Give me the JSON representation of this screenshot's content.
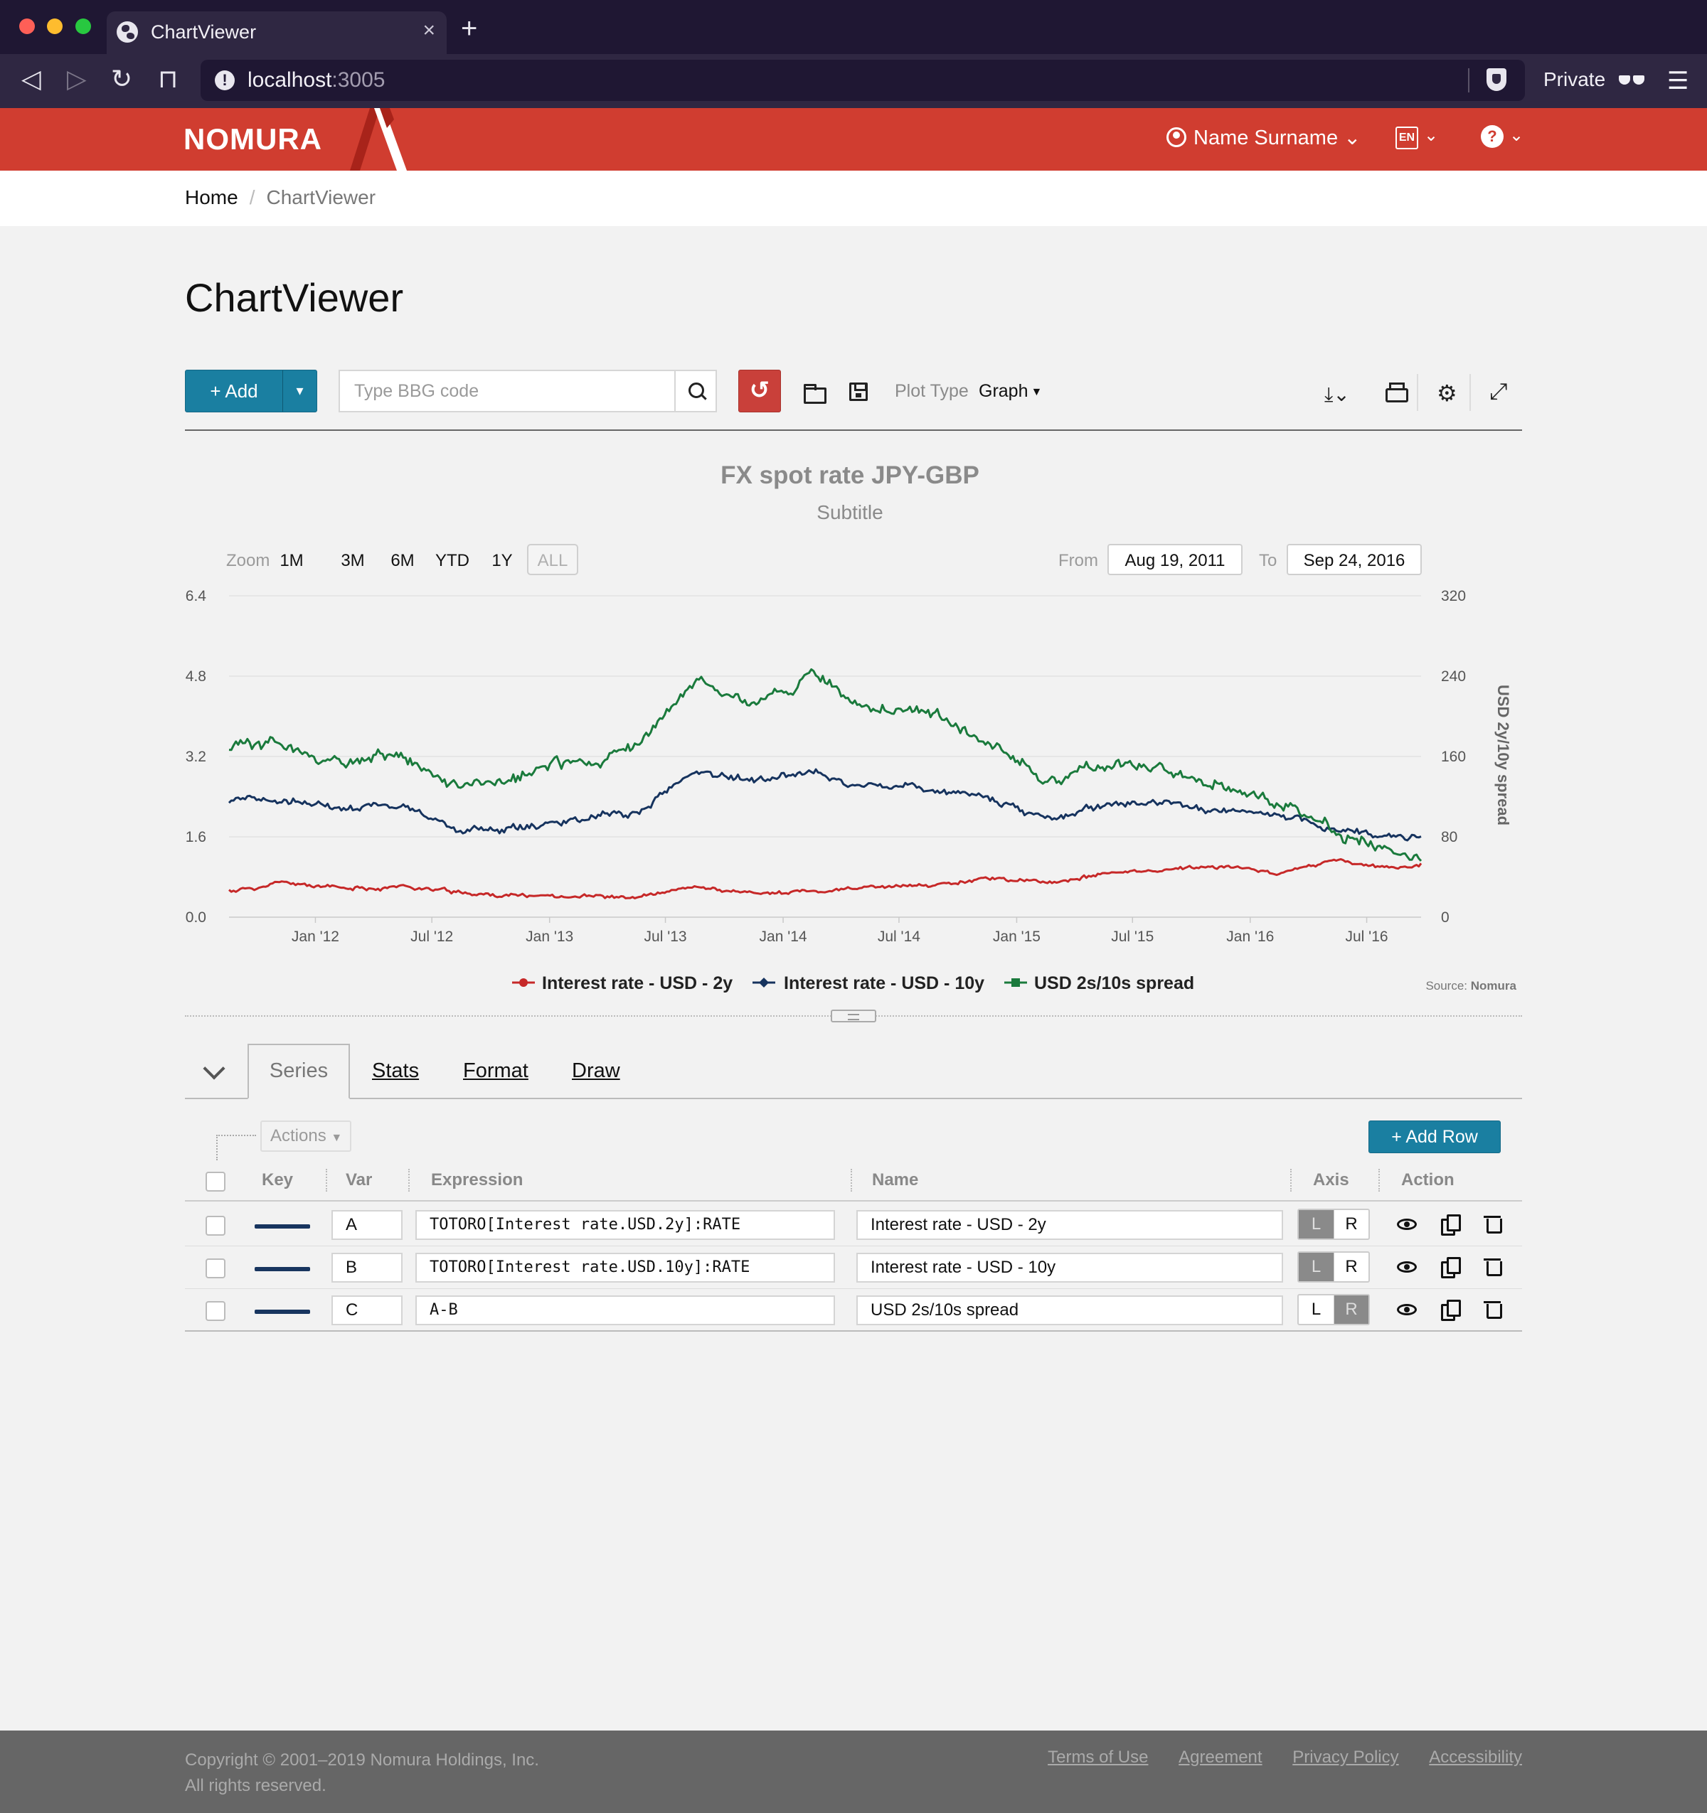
{
  "browser": {
    "tab_title": "ChartViewer",
    "tab_close": "×",
    "new_tab": "+",
    "url_host": "localhost",
    "url_port": ":3005",
    "private_label": "Private"
  },
  "header": {
    "logo_text": "NOMURA",
    "user_name": "Name Surname",
    "language": "EN",
    "help": "?"
  },
  "breadcrumb": {
    "home": "Home",
    "separator": "/",
    "current": "ChartViewer"
  },
  "page_title": "ChartViewer",
  "toolbar": {
    "add_label": "+ Add",
    "search_placeholder": "Type BBG code",
    "plot_type_label": "Plot Type",
    "plot_type_value": "Graph"
  },
  "chart": {
    "zoom_label": "Zoom",
    "zoom_options": [
      "1M",
      "3M",
      "6M",
      "YTD",
      "1Y",
      "ALL"
    ],
    "from_label": "From",
    "from_date": "Aug 19, 2011",
    "to_label": "To",
    "to_date": "Sep 24, 2016",
    "source_label": "Source:",
    "source_value": "Nomura"
  },
  "chart_data": {
    "type": "line",
    "title": "FX spot rate JPY-GBP",
    "subtitle": "Subtitle",
    "xlabel": "",
    "ylabel_left": "",
    "ylabel_right": "USD 2y/10y spread",
    "x_tick_labels": [
      "Jan '12",
      "Jul '12",
      "Jan '13",
      "Jul '13",
      "Jan '14",
      "Jul '14",
      "Jan '15",
      "Jul '15",
      "Jan '16",
      "Jul '16"
    ],
    "x_range": [
      "2011-08-19",
      "2016-09-24"
    ],
    "ylim_left": [
      0,
      6.4
    ],
    "yticks_left": [
      "0.0",
      "1.6",
      "3.2",
      "4.8",
      "6.4"
    ],
    "ylim_right": [
      0,
      320
    ],
    "yticks_right": [
      "0",
      "80",
      "160",
      "240",
      "320"
    ],
    "grid": true,
    "legend_position": "bottom-center",
    "x": [
      "2011-08",
      "2011-11",
      "2012-02",
      "2012-05",
      "2012-08",
      "2012-11",
      "2013-02",
      "2013-05",
      "2013-08",
      "2013-11",
      "2014-02",
      "2014-05",
      "2014-08",
      "2014-11",
      "2015-02",
      "2015-05",
      "2015-08",
      "2015-11",
      "2016-02",
      "2016-05",
      "2016-08",
      "2016-09"
    ],
    "series": [
      {
        "name": "Interest rate - USD - 2y",
        "axis": "left",
        "color": "#c62828",
        "values": [
          0.52,
          0.68,
          0.55,
          0.62,
          0.48,
          0.42,
          0.44,
          0.38,
          0.58,
          0.48,
          0.5,
          0.58,
          0.62,
          0.8,
          0.68,
          0.85,
          0.95,
          1.02,
          0.88,
          1.12,
          0.95,
          1.05
        ]
      },
      {
        "name": "Interest rate - USD - 10y",
        "axis": "left",
        "color": "#16335e",
        "values": [
          2.25,
          2.3,
          2.2,
          2.25,
          1.7,
          1.75,
          2.0,
          2.05,
          2.9,
          2.75,
          2.9,
          2.6,
          2.55,
          2.4,
          1.95,
          2.25,
          2.25,
          2.15,
          2.0,
          1.8,
          1.55,
          1.65
        ]
      },
      {
        "name": "USD 2s/10s spread",
        "axis": "right",
        "color": "#1a7a3c",
        "values": [
          168,
          172,
          150,
          160,
          125,
          140,
          155,
          165,
          235,
          215,
          240,
          210,
          205,
          180,
          130,
          150,
          150,
          130,
          115,
          85,
          65,
          62
        ]
      }
    ]
  },
  "tabs": [
    {
      "label": "Series"
    },
    {
      "label": "Stats"
    },
    {
      "label": "Format"
    },
    {
      "label": "Draw"
    }
  ],
  "series_table": {
    "actions_label": "Actions",
    "add_row_label": "+ Add Row",
    "headers": {
      "key": "Key",
      "var": "Var",
      "expression": "Expression",
      "name": "Name",
      "axis": "Axis",
      "action": "Action"
    },
    "rows": [
      {
        "var": "A",
        "expression": "TOTORO[Interest rate.USD.2y]:RATE",
        "name": "Interest rate - USD - 2y",
        "axis": "L"
      },
      {
        "var": "B",
        "expression": "TOTORO[Interest rate.USD.10y]:RATE",
        "name": "Interest rate - USD - 10y",
        "axis": "L"
      },
      {
        "var": "C",
        "expression": "A-B",
        "name": "USD 2s/10s spread",
        "axis": "R"
      }
    ],
    "axis_options": [
      "L",
      "R"
    ]
  },
  "footer": {
    "copyright_line1": "Copyright © 2001–2019 Nomura Holdings, Inc.",
    "copyright_line2": "All rights reserved.",
    "links": [
      "Terms of Use",
      "Agreement",
      "Privacy Policy",
      "Accessibility"
    ]
  },
  "colors": {
    "brand_red": "#d03d30",
    "primary_blue": "#1a7fa1",
    "browser_dark": "#1f1733"
  }
}
